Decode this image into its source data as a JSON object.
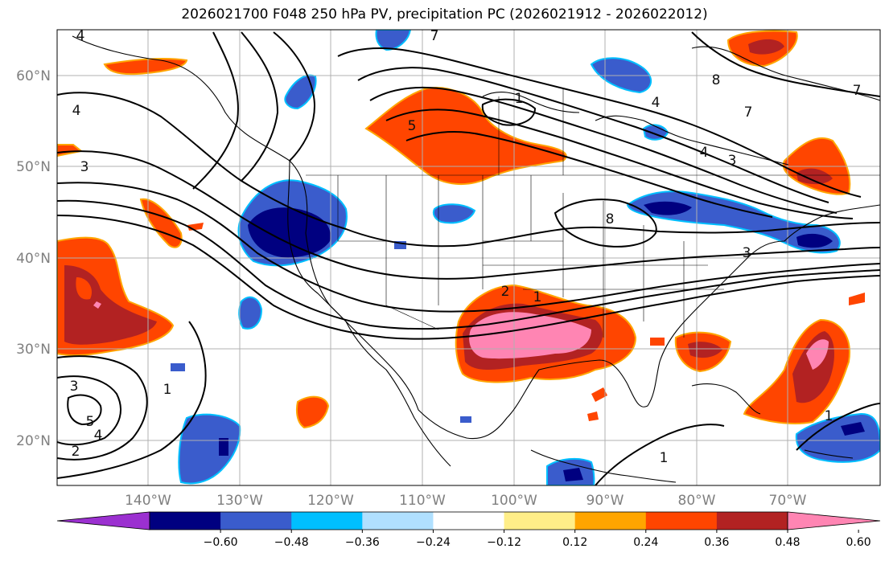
{
  "title": "2026021700 F048 250 hPa PV, precipitation PC (2026021912 - 2026022012)",
  "lat_labels": [
    "60°N",
    "50°N",
    "40°N",
    "30°N",
    "20°N"
  ],
  "lon_labels": [
    "140°W",
    "130°W",
    "120°W",
    "110°W",
    "100°W",
    "90°W",
    "80°W",
    "70°W"
  ],
  "colorbar": {
    "colors": [
      "#9b30d0",
      "#000080",
      "#3a5ccc",
      "#00bfff",
      "#b0e0ff",
      "#ffffff",
      "#ffee88",
      "#ffa500",
      "#ff4500",
      "#b22222",
      "#ff85b3"
    ],
    "ticks": [
      "−0.60",
      "−0.48",
      "−0.36",
      "−0.24",
      "−0.12",
      "0.12",
      "0.24",
      "0.36",
      "0.48",
      "0.60"
    ]
  },
  "contour_labels": [
    "4",
    "3",
    "4",
    "7",
    "4",
    "5",
    "1",
    "8",
    "4",
    "7",
    "3",
    "8",
    "7",
    "3",
    "2",
    "1",
    "1",
    "3",
    "5",
    "4",
    "2",
    "1",
    "1"
  ]
}
